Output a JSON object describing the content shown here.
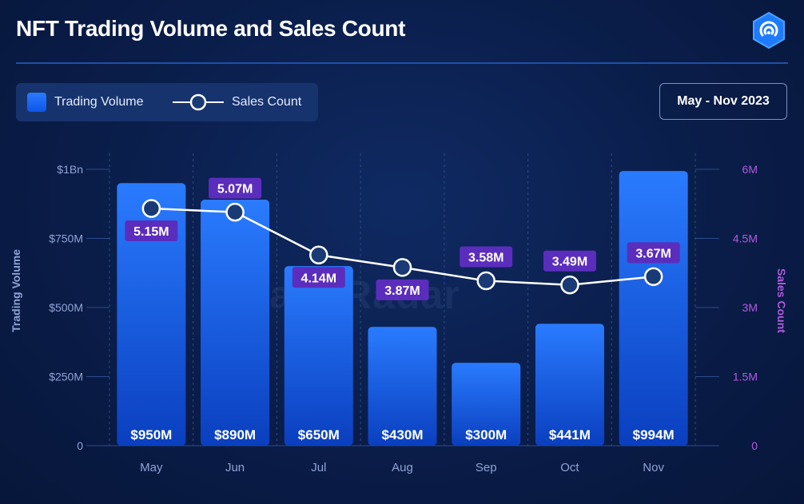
{
  "header": {
    "title": "NFT Trading Volume and Sales Count",
    "date_range": "May - Nov 2023"
  },
  "legend": {
    "bar_label": "Trading Volume",
    "line_label": "Sales Count"
  },
  "watermark": "DappRadar",
  "colors": {
    "bar_top": "#2a7bff",
    "bar_bottom": "#0a3fbf",
    "line": "#ffffff",
    "label_bg": "#5b2dbd",
    "right_axis": "#b25ae0",
    "left_axis": "#8fa3d6"
  },
  "chart_data": {
    "type": "bar+line",
    "title": "NFT Trading Volume and Sales Count",
    "categories": [
      "May",
      "Jun",
      "Jul",
      "Aug",
      "Sep",
      "Oct",
      "Nov"
    ],
    "series": [
      {
        "name": "Trading Volume",
        "axis": "left",
        "type": "bar",
        "values": [
          950,
          890,
          650,
          430,
          300,
          441,
          994
        ],
        "labels": [
          "$950M",
          "$890M",
          "$650M",
          "$430M",
          "$300M",
          "$441M",
          "$994M"
        ]
      },
      {
        "name": "Sales Count",
        "axis": "right",
        "type": "line",
        "values": [
          5.15,
          5.07,
          4.14,
          3.87,
          3.58,
          3.49,
          3.67
        ],
        "labels": [
          "5.15M",
          "5.07M",
          "4.14M",
          "3.87M",
          "3.58M",
          "3.49M",
          "3.67M"
        ]
      }
    ],
    "ylabel": "Trading Volume",
    "ylabel_right": "Sales Count",
    "ylim": [
      0,
      1000
    ],
    "ylim_right": [
      0,
      6
    ],
    "yticks": [
      "0",
      "$250M",
      "$500M",
      "$750M",
      "$1Bn"
    ],
    "yticks_right": [
      "0",
      "1.5M",
      "3M",
      "4.5M",
      "6M"
    ],
    "label_position": [
      "below",
      "above",
      "below",
      "below",
      "above",
      "above",
      "above"
    ],
    "grid": "vertical"
  }
}
